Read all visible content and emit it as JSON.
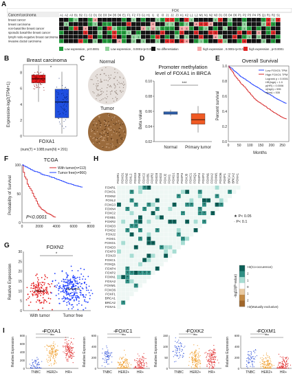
{
  "panels": {
    "A": {
      "label": "A",
      "header_title": "FOX",
      "row_header": "Cancer/carcinoma",
      "columns": [
        "A1",
        "A2",
        "A3",
        "B1",
        "B2",
        "C1",
        "C2",
        "D1",
        "D2",
        "D3",
        "D4",
        "D5",
        "D6",
        "E1",
        "F1",
        "F2",
        "F3",
        "G1",
        "H1",
        "I1",
        "I2",
        "I3",
        "J1",
        "J2",
        "J3",
        "K1",
        "K2",
        "L1",
        "L2",
        "M1",
        "N1",
        "N2",
        "N3",
        "O1",
        "O3",
        "O4",
        "O6",
        "P1",
        "P2",
        "P3",
        "P4",
        "P5",
        "Q1",
        "R1",
        "R2",
        "S1"
      ],
      "rows": [
        "breast cancer",
        "breast carcinoma",
        "non-basal like breast cancer",
        "sporadic basal-like breast cancer",
        "lymph node-negative breast carcinoma",
        "invasive ductal carcinoma"
      ],
      "legend": [
        {
          "label": "Low expression , p<0.0001",
          "color": "#1f9a3a"
        },
        {
          "label": "Low expression , 0.0001<p<0.05",
          "color": "#8fd39b"
        },
        {
          "label": "No differentiation",
          "color": "#111111"
        },
        {
          "label": "high expression , 0.0001<p<0.05",
          "color": "#f4a6a6"
        },
        {
          "label": "high expression , p<0.0001",
          "color": "#e02424"
        }
      ]
    },
    "B": {
      "label": "B",
      "title": "Breast carcinoma",
      "ylabel": "Expression-log2(TPM+1)",
      "xlabel": "FOXA1",
      "footer": "(num(T) = 1085;num(N) = 291)",
      "yticks": [
        "0",
        "2",
        "4",
        "6",
        "8"
      ]
    },
    "C": {
      "label": "C",
      "top_label": "Normal",
      "bottom_label": "Tumor"
    },
    "D": {
      "label": "D",
      "title_line1": "Promoter methylation",
      "title_line2": "level of FOXA1 in BRCA",
      "ylabel": "Beta value",
      "yticks": [
        "0.10",
        "0.08",
        "0.06",
        "0.04",
        "0.02"
      ],
      "xcats": [
        "Normal",
        "Primary tumor"
      ],
      "signif": "***"
    },
    "E": {
      "label": "E",
      "title": "Overall Survival",
      "ylabel": "Percent survival",
      "xlabel": "Months",
      "xticks": [
        "0",
        "50",
        "100",
        "150",
        "200",
        "250"
      ],
      "yticks": [
        "0.0",
        "0.2",
        "0.4",
        "0.6",
        "0.8",
        "1.0"
      ],
      "legend_low": "Low FOXO1 TPM",
      "legend_high": "High FOXO1 TPM",
      "stats": [
        "Logrank p = 0.0001",
        "HR(high) = 1.9",
        "p(HR) = 0.0006",
        "n(high) = 535",
        "n(low) = 535"
      ]
    },
    "F": {
      "label": "F",
      "title": "TCGA",
      "ylabel": "Probability of Survival",
      "xticks": [
        "0",
        "2000",
        "4000",
        "6000",
        "8000"
      ],
      "yticks": [
        "0",
        "50",
        "100"
      ],
      "legend_with": "With tumor(n=113)",
      "legend_free": "Tumor free(n=966)",
      "pval": "P<0.0001"
    },
    "G": {
      "label": "G",
      "title": "FOXN2",
      "ylabel": "Relative Expression",
      "yticks": [
        "0",
        "5",
        "10",
        "15",
        "20",
        "25",
        "30"
      ],
      "xcats": [
        "With tumor",
        "Tumor free"
      ],
      "signif": "*"
    },
    "H": {
      "label": "H",
      "genes": [
        "FOXR1",
        "FOXO1",
        "FOXN2",
        "FOXL2",
        "FOXG3",
        "FOXN4",
        "FOXC2",
        "FOXB1",
        "FOXR2",
        "FOXD3",
        "FOXD2",
        "FOXJ2",
        "FOXI1",
        "FOXG1",
        "FOXD3",
        "FOXP3",
        "FOXJ3",
        "FOXC1",
        "FOXQ1",
        "FOXP4",
        "FOXP2",
        "FOXN1",
        "FOXA2",
        "FOXM1",
        "FOXO6",
        "FOXF1",
        "BRCA1",
        "BRCA2",
        "FOXA1"
      ],
      "legend_star1": "★  P< 0.05",
      "legend_star2": "·  P< 0.1",
      "scale_title": "-log10(P-value)",
      "scale_labels": [
        ">3(Co-occurence)",
        "2",
        "1",
        "0",
        "1",
        "2",
        ">3(Mutually exclusive)"
      ]
    },
    "I": {
      "label": "I",
      "ylabel": "Relative Expression",
      "xcats": [
        "TNBC",
        "HER2+",
        "HR+"
      ],
      "plots": [
        {
          "title": "FOXA1",
          "yticks": [
            "0",
            "200",
            "400",
            "600",
            "800"
          ],
          "sig": [
            "***",
            "***"
          ]
        },
        {
          "title": "FOXC1",
          "yticks": [
            "0",
            "200",
            "400",
            "600"
          ],
          "sig": [
            "***",
            "***"
          ]
        },
        {
          "title": "FOXK2",
          "yticks": [
            "0",
            "50",
            "100",
            "150"
          ],
          "sig": [
            "**",
            "***"
          ]
        },
        {
          "title": "FOXM1",
          "yticks": [
            "0",
            "200",
            "400",
            "600"
          ],
          "sig": [
            "***",
            "***"
          ]
        }
      ]
    }
  },
  "colors": {
    "red": "#e41a1c",
    "blue": "#1f4fe0",
    "orange": "#f0a030",
    "crimson": "#d62728",
    "teal_dark": "#0b5f57",
    "teal_light": "#a7ddd3",
    "brown": "#a0662a"
  }
}
